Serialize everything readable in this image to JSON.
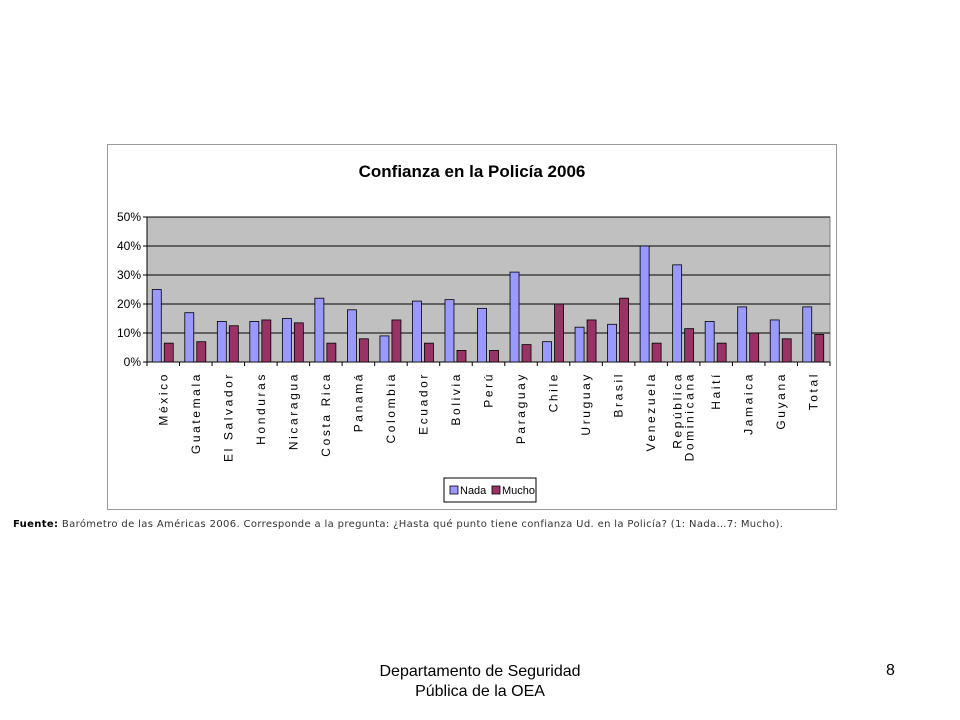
{
  "chart_data": {
    "type": "bar",
    "title": "Confianza en la Policía 2006",
    "categories": [
      "México",
      "Guatemala",
      "El Salvador",
      "Honduras",
      "Nicaragua",
      "Costa Rica",
      "Panamá",
      "Colombia",
      "Ecuador",
      "Bolivia",
      "Perú",
      "Paraguay",
      "Chile",
      "Uruguay",
      "Brasil",
      "Venezuela",
      "República Dominicana",
      "Haití",
      "Jamaica",
      "Guyana",
      "Total"
    ],
    "category_labels": [
      [
        "México"
      ],
      [
        "Guatemala"
      ],
      [
        "El Salvador"
      ],
      [
        "Honduras"
      ],
      [
        "Nicaragua"
      ],
      [
        "Costa Rica"
      ],
      [
        "Panamá"
      ],
      [
        "Colombia"
      ],
      [
        "Ecuador"
      ],
      [
        "Bolivia"
      ],
      [
        "Perú"
      ],
      [
        "Paraguay"
      ],
      [
        "Chile"
      ],
      [
        "Uruguay"
      ],
      [
        "Brasil"
      ],
      [
        "Venezuela"
      ],
      [
        "República",
        "Dominicana"
      ],
      [
        "Haití"
      ],
      [
        "Jamaica"
      ],
      [
        "Guyana"
      ],
      [
        "Total"
      ]
    ],
    "series": [
      {
        "name": "Nada",
        "color": "#9999ff",
        "values": [
          25,
          17,
          14,
          14,
          15,
          22,
          18,
          9,
          21,
          21.5,
          18.5,
          31,
          7,
          12,
          13,
          40,
          33.5,
          14,
          19,
          14.5,
          19
        ]
      },
      {
        "name": "Mucho",
        "color": "#993366",
        "values": [
          6.5,
          7,
          12.5,
          14.5,
          13.5,
          6.5,
          8,
          14.5,
          6.5,
          4,
          4,
          6,
          20,
          14.5,
          22,
          6.5,
          11.5,
          6.5,
          10,
          8,
          9.5
        ]
      }
    ],
    "y_ticks": [
      "0%",
      "10%",
      "20%",
      "30%",
      "40%",
      "50%"
    ],
    "ylim": [
      0,
      50
    ],
    "grid": true,
    "legend_position": "bottom"
  },
  "footer": {
    "source_label": "Fuente:",
    "source_text": " Barómetro de las Américas 2006. Corresponde a la pregunta: ¿Hasta qué punto tiene  confianza Ud. en la Policía? (1: Nada…7: Mucho).",
    "dept_line1": "Departamento de Seguridad",
    "dept_line2": "Pública de la OEA",
    "page_number": "8"
  }
}
